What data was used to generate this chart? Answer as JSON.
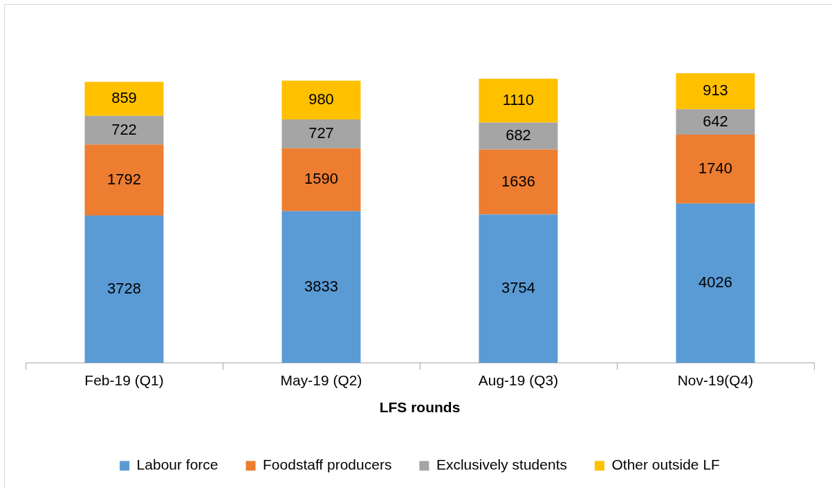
{
  "chart_data": {
    "type": "bar",
    "stacked": true,
    "xlabel": "LFS rounds",
    "categories": [
      "Feb-19 (Q1)",
      "May-19 (Q2)",
      "Aug-19 (Q3)",
      "Nov-19(Q4)"
    ],
    "series": [
      {
        "name": "Labour force",
        "color": "#5b9bd5",
        "values": [
          3728,
          3833,
          3754,
          4026
        ]
      },
      {
        "name": "Foodstaff producers",
        "color": "#ed7d31",
        "values": [
          1792,
          1590,
          1636,
          1740
        ]
      },
      {
        "name": "Exclusively students",
        "color": "#a5a5a5",
        "values": [
          722,
          727,
          682,
          642
        ]
      },
      {
        "name": "Other outside LF",
        "color": "#ffc000",
        "values": [
          859,
          980,
          1110,
          913
        ]
      }
    ],
    "data_labels": true,
    "legend": "bottom",
    "grid": false,
    "tick_labels": "x"
  }
}
